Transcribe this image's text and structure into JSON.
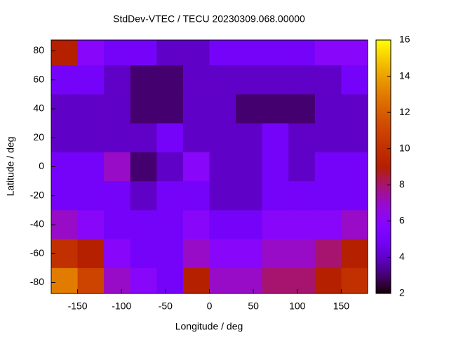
{
  "chart_data": {
    "type": "heatmap",
    "title": "StdDev-VTEC / TECU 20230309.068.00000",
    "xlabel": "Longitude / deg",
    "ylabel": "Latitude / deg",
    "xlim": [
      -180,
      180
    ],
    "ylim": [
      -87.5,
      87.5
    ],
    "xticks": [
      -150,
      -100,
      -50,
      0,
      50,
      100,
      150
    ],
    "yticks": [
      -80,
      -60,
      -40,
      -20,
      0,
      20,
      40,
      60,
      80
    ],
    "cblim": [
      2,
      16
    ],
    "cbticks": [
      2,
      4,
      6,
      8,
      10,
      12,
      14,
      16
    ],
    "x_edges": [
      -180,
      -150,
      -120,
      -90,
      -60,
      -30,
      0,
      30,
      60,
      90,
      120,
      150,
      180
    ],
    "y_edges": [
      87.5,
      70,
      50,
      30,
      10,
      -10,
      -30,
      -50,
      -70,
      -87.5
    ],
    "z": [
      [
        9,
        6,
        5,
        5,
        4,
        4,
        5,
        5,
        5,
        5,
        6,
        6
      ],
      [
        5,
        5,
        4,
        3,
        3,
        4,
        4,
        4,
        4,
        4,
        4,
        5
      ],
      [
        4,
        4,
        4,
        3,
        3,
        4,
        4,
        3,
        3,
        3,
        4,
        4
      ],
      [
        4,
        4,
        4,
        4,
        5,
        4,
        4,
        4,
        5,
        4,
        4,
        4
      ],
      [
        5,
        5,
        7,
        3,
        4,
        6,
        4,
        4,
        5,
        4,
        5,
        5
      ],
      [
        5,
        5,
        5,
        4,
        5,
        5,
        4,
        4,
        5,
        5,
        5,
        5
      ],
      [
        7,
        6,
        5,
        5,
        5,
        6,
        5,
        5,
        6,
        6,
        6,
        7
      ],
      [
        10,
        9,
        6,
        5,
        5,
        7,
        6,
        6,
        7,
        7,
        8,
        9
      ],
      [
        13,
        11,
        7,
        6,
        5,
        9,
        7,
        7,
        8,
        8,
        9,
        10
      ]
    ]
  }
}
